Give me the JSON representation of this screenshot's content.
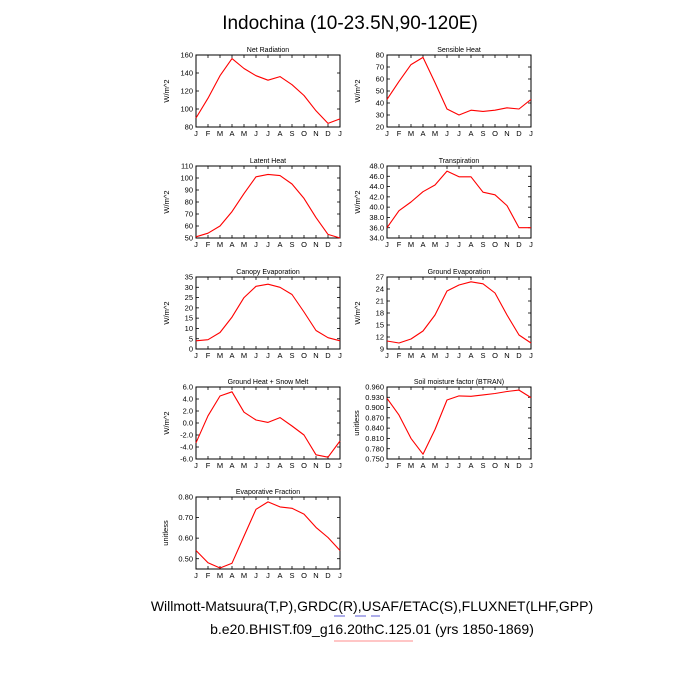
{
  "title": "Indochina (10-23.5N,90-120E)",
  "colors": {
    "series": "#ff0000",
    "frame": "#000000",
    "accent_underline_red": "#ff6666",
    "accent_underline_blue": "#3333cc"
  },
  "footer": {
    "line1": "Willmott-Matsuura(T,P),GRDC(R),USAF/ETAC(S),FLUXNET(LHF,GPP)",
    "line2": "b.e20.BHIST.f09_g16.20thC.125.01 (yrs 1850-1869)"
  },
  "chart_data": [
    {
      "type": "line",
      "title": "Net Radiation",
      "ylabel": "W/m^2",
      "categories": [
        "J",
        "F",
        "M",
        "A",
        "M",
        "J",
        "J",
        "A",
        "S",
        "O",
        "N",
        "D",
        "J"
      ],
      "yticks": [
        "80",
        "100",
        "120",
        "140",
        "160"
      ],
      "ylim": [
        80,
        160
      ],
      "values": [
        90,
        112,
        137,
        156,
        145,
        137,
        132,
        136,
        127,
        115,
        98,
        84,
        89
      ]
    },
    {
      "type": "line",
      "title": "Sensible Heat",
      "ylabel": "W/m^2",
      "categories": [
        "J",
        "F",
        "M",
        "A",
        "M",
        "J",
        "J",
        "A",
        "S",
        "O",
        "N",
        "D",
        "J"
      ],
      "yticks": [
        "20",
        "30",
        "40",
        "50",
        "60",
        "70",
        "80"
      ],
      "ylim": [
        20,
        80
      ],
      "values": [
        43,
        58,
        72,
        78,
        57,
        35,
        30,
        34,
        33,
        34,
        36,
        35,
        43
      ]
    },
    {
      "type": "line",
      "title": "Latent Heat",
      "ylabel": "W/m^2",
      "categories": [
        "J",
        "F",
        "M",
        "A",
        "M",
        "J",
        "J",
        "A",
        "S",
        "O",
        "N",
        "D",
        "J"
      ],
      "yticks": [
        "50",
        "60",
        "70",
        "80",
        "90",
        "100",
        "110"
      ],
      "ylim": [
        50,
        110
      ],
      "values": [
        51,
        54,
        60,
        72,
        87,
        101,
        103,
        102,
        95,
        83,
        67,
        53,
        50
      ]
    },
    {
      "type": "line",
      "title": "Transpiration",
      "ylabel": "W/m^2",
      "categories": [
        "J",
        "F",
        "M",
        "A",
        "M",
        "J",
        "J",
        "A",
        "S",
        "O",
        "N",
        "D",
        "J"
      ],
      "yticks": [
        "34.0",
        "36.0",
        "38.0",
        "40.0",
        "42.0",
        "44.0",
        "46.0",
        "48.0"
      ],
      "ylim": [
        34,
        48
      ],
      "values": [
        36.0,
        39.3,
        41.0,
        43.0,
        44.3,
        47.0,
        45.9,
        45.9,
        42.9,
        42.4,
        40.3,
        36.0,
        36.0
      ]
    },
    {
      "type": "line",
      "title": "Canopy Evaporation",
      "ylabel": "W/m^2",
      "categories": [
        "J",
        "F",
        "M",
        "A",
        "M",
        "J",
        "J",
        "A",
        "S",
        "O",
        "N",
        "D",
        "J"
      ],
      "yticks": [
        "0",
        "5",
        "10",
        "15",
        "20",
        "25",
        "30",
        "35"
      ],
      "ylim": [
        0,
        35
      ],
      "values": [
        4,
        4.5,
        8,
        15.5,
        25,
        30.5,
        31.5,
        30,
        26.5,
        18,
        9,
        5.5,
        4
      ]
    },
    {
      "type": "line",
      "title": "Ground Evaporation",
      "ylabel": "W/m^2",
      "categories": [
        "J",
        "F",
        "M",
        "A",
        "M",
        "J",
        "J",
        "A",
        "S",
        "O",
        "N",
        "D",
        "J"
      ],
      "yticks": [
        "9",
        "12",
        "15",
        "18",
        "21",
        "24",
        "27"
      ],
      "ylim": [
        9,
        27
      ],
      "values": [
        11,
        10.5,
        11.5,
        13.5,
        17.5,
        23.5,
        25,
        25.8,
        25.3,
        23,
        17.5,
        12.5,
        10.5
      ]
    },
    {
      "type": "line",
      "title": "Ground Heat + Snow Melt",
      "ylabel": "W/m^2",
      "categories": [
        "J",
        "F",
        "M",
        "A",
        "M",
        "J",
        "J",
        "A",
        "S",
        "O",
        "N",
        "D",
        "J"
      ],
      "yticks": [
        "-6.0",
        "-4.0",
        "-2.0",
        "0.0",
        "2.0",
        "4.0",
        "6.0"
      ],
      "ylim": [
        -6,
        6
      ],
      "values": [
        -3.3,
        1.2,
        4.5,
        5.2,
        1.8,
        0.5,
        0.1,
        0.9,
        -0.5,
        -2.0,
        -5.3,
        -5.7,
        -3.0
      ]
    },
    {
      "type": "line",
      "title": "Soil moisture factor (BTRAN)",
      "ylabel": "unitless",
      "categories": [
        "J",
        "F",
        "M",
        "A",
        "M",
        "J",
        "J",
        "A",
        "S",
        "O",
        "N",
        "D",
        "J"
      ],
      "yticks": [
        "0.750",
        "0.780",
        "0.810",
        "0.840",
        "0.870",
        "0.900",
        "0.930",
        "0.960"
      ],
      "ylim": [
        0.75,
        0.96
      ],
      "values": [
        0.927,
        0.878,
        0.81,
        0.764,
        0.836,
        0.922,
        0.934,
        0.933,
        0.937,
        0.941,
        0.947,
        0.951,
        0.929
      ]
    },
    {
      "type": "line",
      "title": "Evaporative Fraction",
      "ylabel": "unitless",
      "categories": [
        "J",
        "F",
        "M",
        "A",
        "M",
        "J",
        "J",
        "A",
        "S",
        "O",
        "N",
        "D",
        "J"
      ],
      "yticks": [
        "0.50",
        "0.60",
        "0.70",
        "0.80"
      ],
      "ylim": [
        0.45,
        0.8
      ],
      "values": [
        0.54,
        0.48,
        0.455,
        0.478,
        0.61,
        0.74,
        0.776,
        0.752,
        0.745,
        0.717,
        0.652,
        0.603,
        0.54
      ]
    }
  ]
}
